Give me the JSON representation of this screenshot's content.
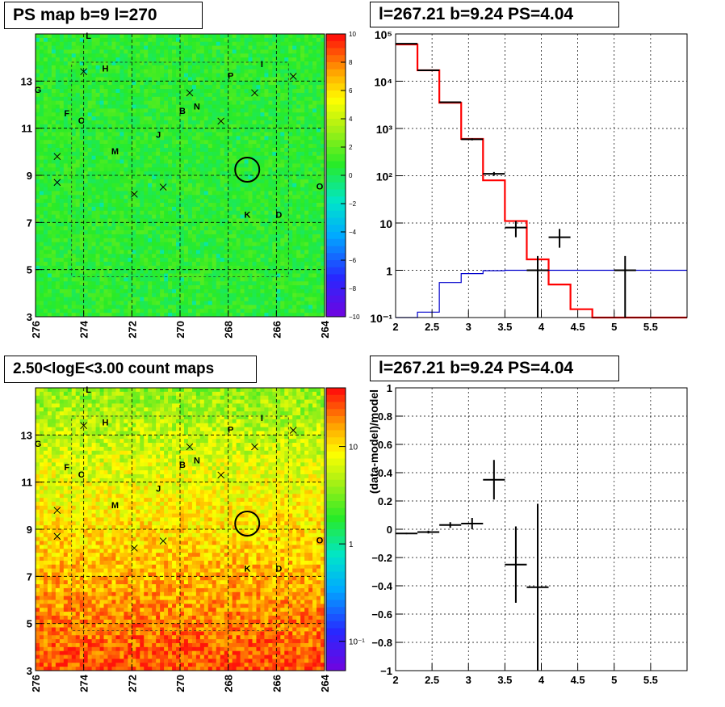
{
  "titles": {
    "ps_map": "PS map b=9 l=270",
    "spectrum": "l=267.21 b=9.24 PS=4.04",
    "count_map": "2.50<logE<3.00 count maps",
    "residual": "l=267.21 b=9.24 PS=4.04"
  },
  "colors": {
    "background": "#ffffff",
    "axis": "#000000",
    "grid": "#000000",
    "model_total": "#ff0000",
    "model_source": "#0000cc",
    "data": "#000000",
    "ps_map_fill": "#33ee22",
    "count_map_low": "#e8ff20",
    "count_map_high": "#ff3010"
  },
  "chart_data": [
    {
      "type": "heatmap",
      "name": "ps_map",
      "title": "PS map b=9 l=270",
      "xlim": [
        276,
        264
      ],
      "ylim": [
        3,
        15
      ],
      "x_ticks": [
        "276",
        "274",
        "272",
        "270",
        "268",
        "266",
        "264"
      ],
      "y_ticks": [
        "3",
        "5",
        "7",
        "9",
        "11",
        "13"
      ],
      "colorbar": {
        "scale": "linear",
        "range": [
          -10,
          10
        ],
        "ticks": [
          "10",
          "8",
          "6",
          "4",
          "2",
          "0",
          "−2",
          "−4",
          "−6",
          "−8",
          "−10"
        ]
      },
      "sources": [
        {
          "label": "L",
          "l": 273.8,
          "b": 14.8
        },
        {
          "label": "H",
          "l": 273.1,
          "b": 13.4
        },
        {
          "label": "G",
          "l": 275.9,
          "b": 12.5
        },
        {
          "label": "F",
          "l": 274.7,
          "b": 11.5
        },
        {
          "label": "C",
          "l": 274.1,
          "b": 11.2
        },
        {
          "label": "M",
          "l": 272.7,
          "b": 9.9
        },
        {
          "label": "J",
          "l": 270.9,
          "b": 10.6
        },
        {
          "label": "B",
          "l": 269.9,
          "b": 11.6
        },
        {
          "label": "N",
          "l": 269.3,
          "b": 11.8
        },
        {
          "label": "P",
          "l": 267.9,
          "b": 13.1
        },
        {
          "label": "I",
          "l": 266.6,
          "b": 13.6
        },
        {
          "label": "K",
          "l": 267.2,
          "b": 7.2
        },
        {
          "label": "D",
          "l": 265.9,
          "b": 7.2
        },
        {
          "label": "O",
          "l": 264.2,
          "b": 8.4
        }
      ],
      "crosses": [
        [
          274.0,
          13.4
        ],
        [
          275.1,
          9.8
        ],
        [
          275.1,
          8.7
        ],
        [
          271.9,
          8.2
        ],
        [
          270.7,
          8.5
        ],
        [
          269.6,
          12.5
        ],
        [
          268.3,
          11.3
        ],
        [
          266.9,
          12.5
        ],
        [
          265.3,
          13.2
        ]
      ],
      "circle": {
        "l": 267.21,
        "b": 9.24
      }
    },
    {
      "type": "line",
      "name": "spectrum",
      "title": "l=267.21 b=9.24 PS=4.04",
      "xlim": [
        2,
        6
      ],
      "ylim": [
        0.1,
        100000
      ],
      "ylog": true,
      "x_ticks": [
        "2",
        "2.5",
        "3",
        "3.5",
        "4",
        "4.5",
        "5",
        "5.5"
      ],
      "y_ticks": [
        "10⁵",
        "10⁴",
        "10³",
        "10²",
        "10",
        "1",
        "10⁻¹"
      ],
      "grid": true,
      "series": [
        {
          "role": "model_total",
          "style": "step",
          "edges": [
            2.0,
            2.3,
            2.6,
            2.9,
            3.2,
            3.5,
            3.8,
            4.1,
            4.4,
            4.7,
            5.0,
            6.0
          ],
          "values": [
            60000,
            17000,
            3500,
            600,
            80,
            11,
            1.7,
            0.5,
            0.15,
            0.1,
            0.1
          ]
        },
        {
          "role": "model_source",
          "style": "step",
          "edges": [
            2.0,
            2.3,
            2.6,
            2.9,
            3.2,
            3.5,
            3.8,
            6.0
          ],
          "values": [
            0.1,
            0.13,
            0.55,
            0.85,
            0.98,
            1.0,
            1.0
          ]
        }
      ],
      "points": [
        {
          "x": 2.15,
          "y": 62000,
          "xerr": 0.15,
          "ylo": 61000,
          "yhi": 63000
        },
        {
          "x": 2.45,
          "y": 17000,
          "xerr": 0.15,
          "ylo": 16800,
          "yhi": 17200
        },
        {
          "x": 2.75,
          "y": 3600,
          "xerr": 0.15,
          "ylo": 3500,
          "yhi": 3700
        },
        {
          "x": 3.05,
          "y": 590,
          "xerr": 0.15,
          "ylo": 560,
          "yhi": 620
        },
        {
          "x": 3.35,
          "y": 110,
          "xerr": 0.15,
          "ylo": 100,
          "yhi": 120
        },
        {
          "x": 3.65,
          "y": 8,
          "xerr": 0.15,
          "ylo": 5,
          "yhi": 11
        },
        {
          "x": 3.95,
          "y": 1,
          "xerr": 0.15,
          "ylo": 0.1,
          "yhi": 2
        },
        {
          "x": 4.25,
          "y": 5,
          "xerr": 0.15,
          "ylo": 3,
          "yhi": 7.5
        },
        {
          "x": 5.15,
          "y": 1,
          "xerr": 0.15,
          "ylo": 0.1,
          "yhi": 2
        }
      ]
    },
    {
      "type": "heatmap",
      "name": "count_map",
      "title": "2.50<logE<3.00 count maps",
      "xlim": [
        276,
        264
      ],
      "ylim": [
        3,
        15
      ],
      "x_ticks": [
        "276",
        "274",
        "272",
        "270",
        "268",
        "266",
        "264"
      ],
      "y_ticks": [
        "3",
        "5",
        "7",
        "9",
        "11",
        "13"
      ],
      "colorbar": {
        "scale": "log",
        "range": [
          0.05,
          40
        ],
        "ticks": [
          "10",
          "1",
          "10⁻¹"
        ]
      }
    },
    {
      "type": "scatter",
      "name": "residual",
      "title": "l=267.21 b=9.24 PS=4.04",
      "ylabel": "(data-model)/model",
      "xlim": [
        2,
        6
      ],
      "ylim": [
        -1,
        1
      ],
      "x_ticks": [
        "2",
        "2.5",
        "3",
        "3.5",
        "4",
        "4.5",
        "5",
        "5.5"
      ],
      "y_ticks": [
        "1",
        "0.8",
        "0.6",
        "0.4",
        "0.2",
        "0",
        "−0.2",
        "−0.4",
        "−0.6",
        "−0.8",
        "−1"
      ],
      "grid": true,
      "points": [
        {
          "x": 2.15,
          "y": -0.03,
          "xerr": 0.15,
          "yerr": 0.005
        },
        {
          "x": 2.45,
          "y": -0.02,
          "xerr": 0.15,
          "yerr": 0.01
        },
        {
          "x": 2.75,
          "y": 0.03,
          "xerr": 0.15,
          "yerr": 0.02
        },
        {
          "x": 3.05,
          "y": 0.04,
          "xerr": 0.15,
          "yerr": 0.04
        },
        {
          "x": 3.35,
          "y": 0.35,
          "xerr": 0.15,
          "yerr": 0.14
        },
        {
          "x": 3.65,
          "y": -0.25,
          "xerr": 0.15,
          "yerr": 0.27
        },
        {
          "x": 3.95,
          "y": -0.41,
          "xerr": 0.15,
          "yerr": 0.59
        }
      ]
    }
  ]
}
